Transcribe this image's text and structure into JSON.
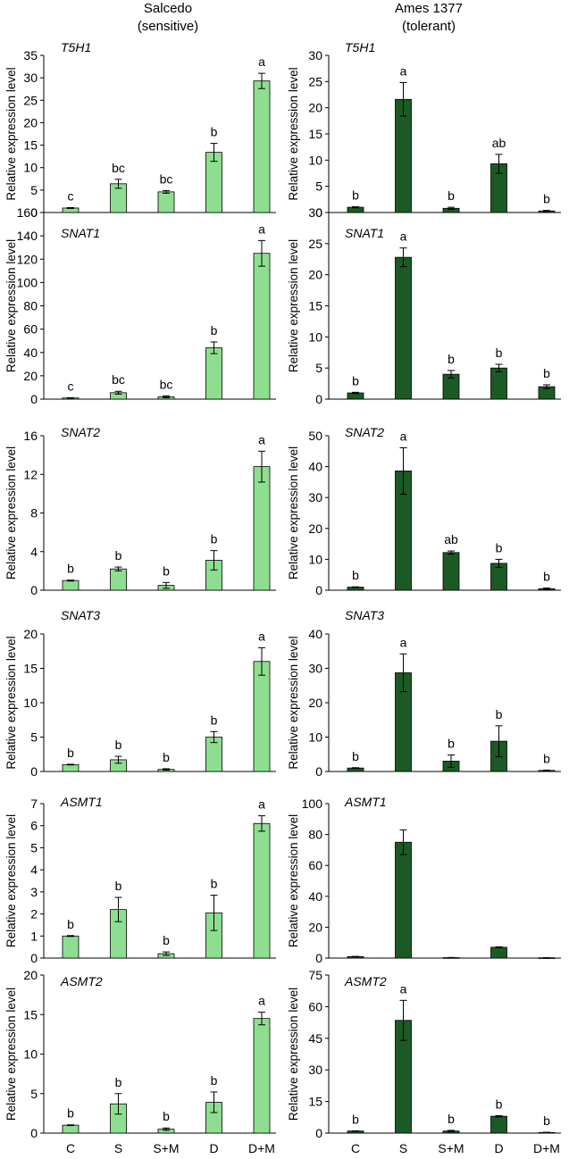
{
  "column_titles": [
    {
      "line1": "Salcedo",
      "line2": "(sensitive)"
    },
    {
      "line1": "Ames 1377",
      "line2": "(tolerant)"
    }
  ],
  "shared": {
    "categories": [
      "C",
      "S",
      "S+M",
      "D",
      "D+M"
    ],
    "ylabel": "Relative expression level",
    "left_color": "#8ddf8f",
    "right_color": "#1b5a24",
    "outline_color": "#000000"
  },
  "chart_data": [
    {
      "type": "bar",
      "title": "T5H1",
      "panel": "Salcedo",
      "ylim": [
        0,
        35
      ],
      "yticks": [
        0,
        5,
        10,
        15,
        20,
        25,
        30,
        35
      ],
      "categories": [
        "C",
        "S",
        "S+M",
        "D",
        "D+M"
      ],
      "values": [
        1,
        6.4,
        4.6,
        13.4,
        29.3
      ],
      "errors": [
        0.1,
        1.0,
        0.3,
        2.0,
        1.7
      ],
      "labels": [
        "c",
        "bc",
        "bc",
        "b",
        "a"
      ]
    },
    {
      "type": "bar",
      "title": "T5H1",
      "panel": "Ames 1377",
      "ylim": [
        0,
        30
      ],
      "yticks": [
        0,
        5,
        10,
        15,
        20,
        25,
        30
      ],
      "categories": [
        "C",
        "S",
        "S+M",
        "D",
        "D+M"
      ],
      "values": [
        1,
        21.6,
        0.8,
        9.3,
        0.3
      ],
      "errors": [
        0.1,
        3.2,
        0.2,
        1.8,
        0.1
      ],
      "labels": [
        "b",
        "a",
        "b",
        "ab",
        "b"
      ]
    },
    {
      "type": "bar",
      "title": "SNAT1",
      "panel": "Salcedo",
      "ylim": [
        0,
        160
      ],
      "yticks": [
        0,
        20,
        40,
        60,
        80,
        100,
        120,
        140,
        160
      ],
      "categories": [
        "C",
        "S",
        "S+M",
        "D",
        "D+M"
      ],
      "values": [
        1,
        5.5,
        2,
        44,
        125
      ],
      "errors": [
        0.2,
        1.2,
        0.8,
        5,
        11
      ],
      "labels": [
        "c",
        "bc",
        "bc",
        "b",
        "a"
      ]
    },
    {
      "type": "bar",
      "title": "SNAT1",
      "panel": "Ames 1377",
      "ylim": [
        0,
        30
      ],
      "yticks": [
        0,
        5,
        10,
        15,
        20,
        25,
        30
      ],
      "categories": [
        "C",
        "S",
        "S+M",
        "D",
        "D+M"
      ],
      "values": [
        1,
        22.8,
        4,
        5,
        2
      ],
      "errors": [
        0.1,
        1.5,
        0.6,
        0.6,
        0.3
      ],
      "labels": [
        "b",
        "a",
        "b",
        "b",
        "b"
      ]
    },
    {
      "type": "bar",
      "title": "SNAT2",
      "panel": "Salcedo",
      "ylim": [
        0,
        16
      ],
      "yticks": [
        0,
        4,
        8,
        12,
        16
      ],
      "categories": [
        "C",
        "S",
        "S+M",
        "D",
        "D+M"
      ],
      "values": [
        1,
        2.2,
        0.5,
        3.1,
        12.8
      ],
      "errors": [
        0.05,
        0.2,
        0.3,
        1.0,
        1.6
      ],
      "labels": [
        "b",
        "b",
        "b",
        "b",
        "a"
      ]
    },
    {
      "type": "bar",
      "title": "SNAT2",
      "panel": "Ames 1377",
      "ylim": [
        0,
        50
      ],
      "yticks": [
        0,
        10,
        20,
        30,
        40,
        50
      ],
      "categories": [
        "C",
        "S",
        "S+M",
        "D",
        "D+M"
      ],
      "values": [
        1,
        38.6,
        12.2,
        8.7,
        0.5
      ],
      "errors": [
        0.1,
        7.5,
        0.5,
        1.3,
        0.2
      ],
      "labels": [
        "b",
        "a",
        "ab",
        "b",
        "b"
      ]
    },
    {
      "type": "bar",
      "title": "SNAT3",
      "panel": "Salcedo",
      "ylim": [
        0,
        20
      ],
      "yticks": [
        0,
        5,
        10,
        15,
        20
      ],
      "categories": [
        "C",
        "S",
        "S+M",
        "D",
        "D+M"
      ],
      "values": [
        1,
        1.7,
        0.3,
        5,
        16
      ],
      "errors": [
        0.05,
        0.5,
        0.1,
        0.8,
        2
      ],
      "labels": [
        "b",
        "b",
        "b",
        "b",
        "a"
      ]
    },
    {
      "type": "bar",
      "title": "SNAT3",
      "panel": "Ames 1377",
      "ylim": [
        0,
        40
      ],
      "yticks": [
        0,
        10,
        20,
        30,
        40
      ],
      "categories": [
        "C",
        "S",
        "S+M",
        "D",
        "D+M"
      ],
      "values": [
        1,
        28.7,
        3,
        8.8,
        0.3
      ],
      "errors": [
        0.1,
        5.5,
        1.8,
        4.5,
        0.1
      ],
      "labels": [
        "b",
        "a",
        "b",
        "b",
        "b"
      ]
    },
    {
      "type": "bar",
      "title": "ASMT1",
      "panel": "Salcedo",
      "ylim": [
        0,
        7
      ],
      "yticks": [
        0,
        1,
        2,
        3,
        4,
        5,
        6,
        7
      ],
      "categories": [
        "C",
        "S",
        "S+M",
        "D",
        "D+M"
      ],
      "values": [
        1,
        2.2,
        0.2,
        2.05,
        6.1
      ],
      "errors": [
        0.02,
        0.55,
        0.08,
        0.8,
        0.35
      ],
      "labels": [
        "b",
        "b",
        "b",
        "b",
        "a"
      ]
    },
    {
      "type": "bar",
      "title": "ASMT1",
      "panel": "Ames 1377",
      "ylim": [
        0,
        100
      ],
      "yticks": [
        0,
        20,
        40,
        60,
        80,
        100
      ],
      "categories": [
        "C",
        "S",
        "S+M",
        "D",
        "D+M"
      ],
      "values": [
        1,
        75,
        0.3,
        7,
        0.2
      ],
      "errors": [
        0.1,
        8,
        0.1,
        0.3,
        0.1
      ],
      "labels": [
        "",
        "",
        "",
        "",
        ""
      ]
    },
    {
      "type": "bar",
      "title": "ASMT2",
      "panel": "Salcedo",
      "ylim": [
        0,
        20
      ],
      "yticks": [
        0,
        5,
        10,
        15,
        20
      ],
      "categories": [
        "C",
        "S",
        "S+M",
        "D",
        "D+M"
      ],
      "values": [
        1,
        3.7,
        0.5,
        3.9,
        14.5
      ],
      "errors": [
        0.05,
        1.3,
        0.15,
        1.3,
        0.8
      ],
      "labels": [
        "b",
        "b",
        "b",
        "b",
        "a"
      ]
    },
    {
      "type": "bar",
      "title": "ASMT2",
      "panel": "Ames 1377",
      "ylim": [
        0,
        75
      ],
      "yticks": [
        0,
        15,
        30,
        45,
        60,
        75
      ],
      "categories": [
        "C",
        "S",
        "S+M",
        "D",
        "D+M"
      ],
      "values": [
        1,
        53.5,
        1,
        8,
        0.3
      ],
      "errors": [
        0.1,
        9.5,
        0.3,
        0.3,
        0.1
      ],
      "labels": [
        "b",
        "a",
        "b",
        "b",
        "b"
      ]
    }
  ]
}
